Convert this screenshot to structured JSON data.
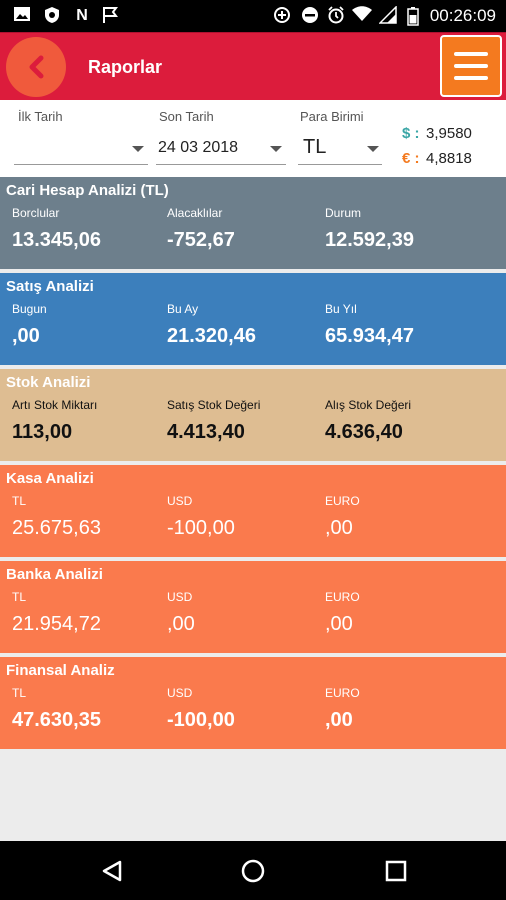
{
  "status_bar": {
    "time": "00:26:09",
    "icons": [
      "image-icon",
      "shield-icon",
      "n-icon",
      "flag-icon",
      "data-saver-icon",
      "do-not-disturb-icon",
      "alarm-icon",
      "wifi-icon",
      "battery-icon"
    ]
  },
  "header": {
    "title": "Raporlar",
    "back_icon": "chevron-left-icon",
    "menu_icon": "hamburger-menu-icon",
    "colors": {
      "bar": "#dc1c3c",
      "back": "#f05a3c",
      "menu": "#f47a1f"
    }
  },
  "filters": {
    "start_date": {
      "label": "İlk Tarih",
      "value": ""
    },
    "end_date": {
      "label": "Son Tarih",
      "value": "24 03 2018"
    },
    "currency": {
      "label": "Para Birimi",
      "value": "TL"
    }
  },
  "rates": [
    {
      "symbol": "$ :",
      "value": "3,9580",
      "color": "#3aa6a6"
    },
    {
      "symbol": "€ :",
      "value": "4,8818",
      "color": "#f47a1f"
    }
  ],
  "cards": [
    {
      "title": "Cari Hesap Analizi (TL)",
      "color": "#6d7f8c",
      "columns": [
        {
          "label": "Borclular",
          "value": "13.345,06"
        },
        {
          "label": "Alacaklılar",
          "value": "-752,67"
        },
        {
          "label": "Durum",
          "value": "12.592,39"
        }
      ]
    },
    {
      "title": "Satış Analizi",
      "color": "#3c7fbc",
      "columns": [
        {
          "label": "Bugun",
          "value": ",00"
        },
        {
          "label": "Bu Ay",
          "value": "21.320,46"
        },
        {
          "label": "Bu Yıl",
          "value": "65.934,47"
        }
      ]
    },
    {
      "title": "Stok Analizi",
      "color": "#debd92",
      "columns": [
        {
          "label": "Artı Stok Miktarı",
          "value": "113,00"
        },
        {
          "label": "Satış Stok Değeri",
          "value": "4.413,40"
        },
        {
          "label": "Alış Stok Değeri",
          "value": "4.636,40"
        }
      ]
    },
    {
      "title": "Kasa Analizi",
      "color": "#fa7a4d",
      "columns": [
        {
          "label": "TL",
          "value": "25.675,63"
        },
        {
          "label": "USD",
          "value": "-100,00"
        },
        {
          "label": "EURO",
          "value": ",00"
        }
      ]
    },
    {
      "title": "Banka Analizi",
      "color": "#fa7a4d",
      "columns": [
        {
          "label": "TL",
          "value": "21.954,72"
        },
        {
          "label": "USD",
          "value": ",00"
        },
        {
          "label": "EURO",
          "value": ",00"
        }
      ]
    },
    {
      "title": "Finansal Analiz",
      "color": "#fa7a4d",
      "columns": [
        {
          "label": "TL",
          "value": "47.630,35"
        },
        {
          "label": "USD",
          "value": "-100,00"
        },
        {
          "label": "EURO",
          "value": ",00"
        }
      ]
    }
  ],
  "nav_bar": {
    "icons": [
      "back-triangle-icon",
      "home-circle-icon",
      "recents-square-icon"
    ]
  }
}
